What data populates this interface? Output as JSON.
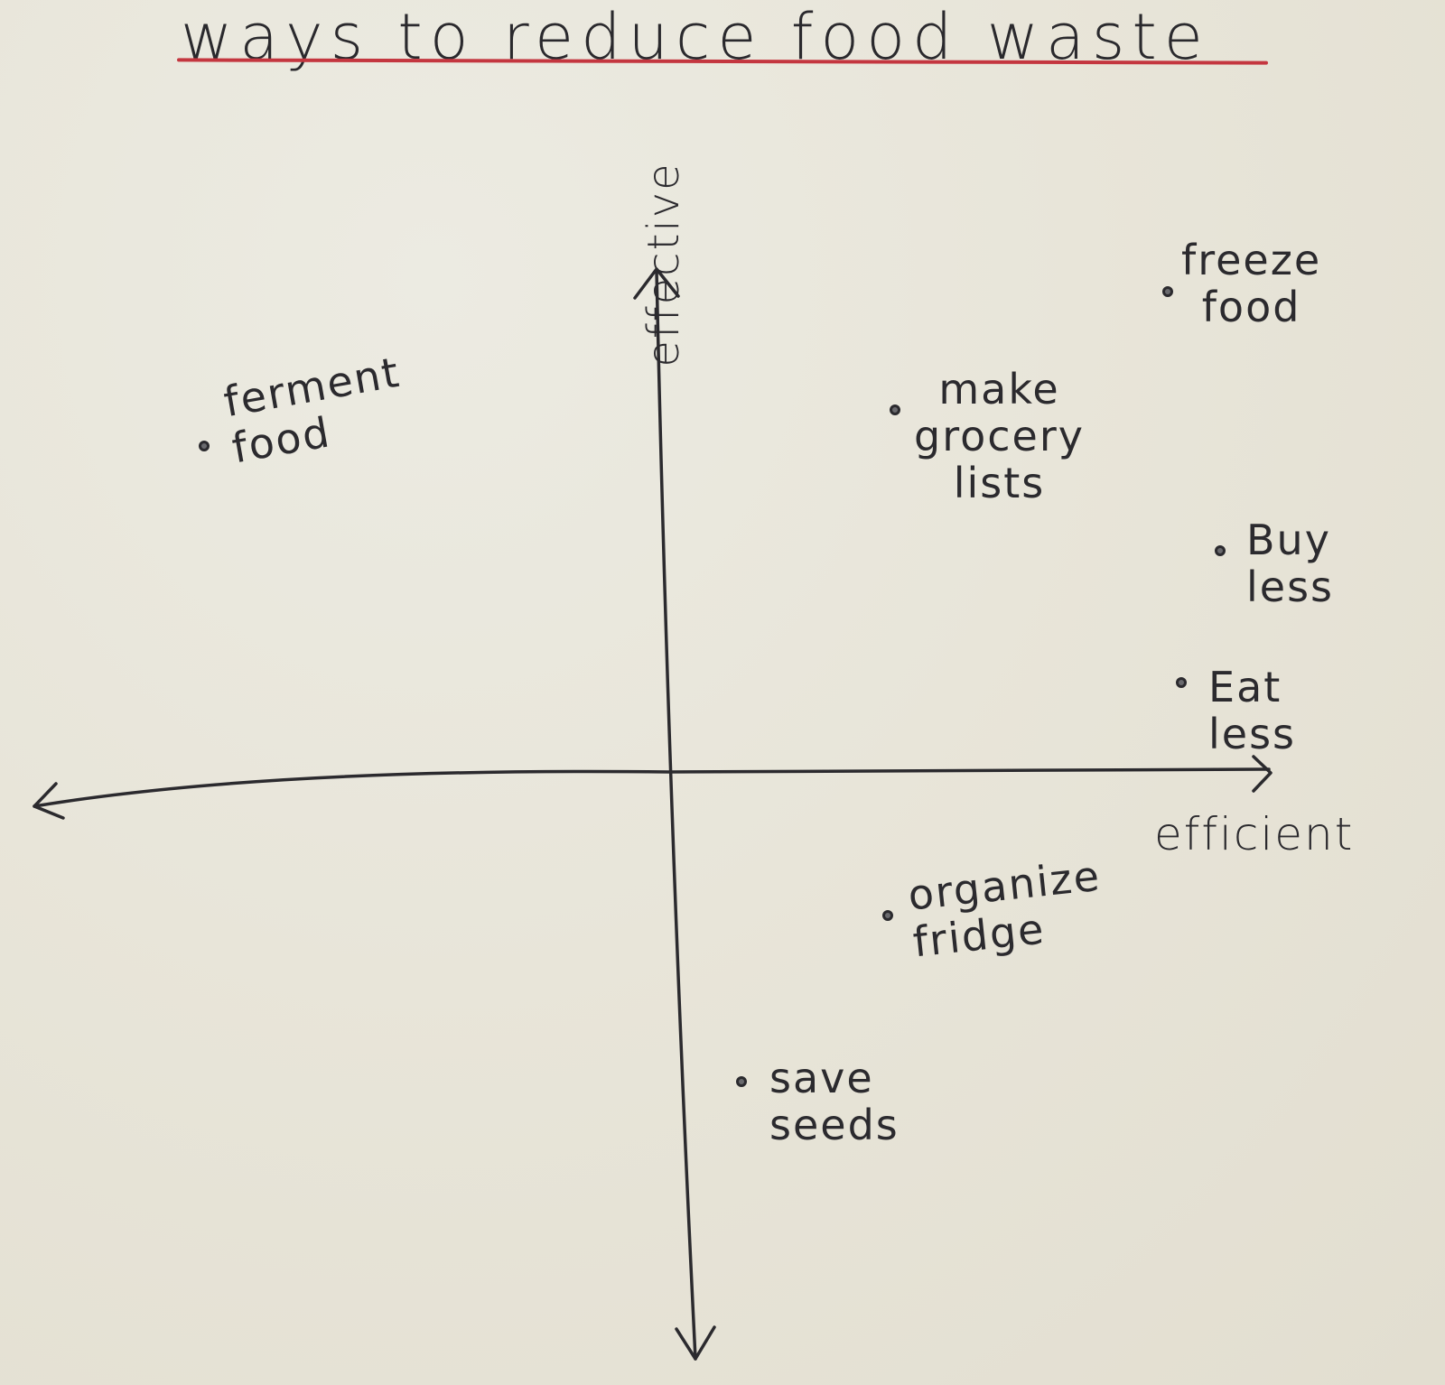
{
  "title": "ways to reduce food waste",
  "axes": {
    "y_label": "effective",
    "x_label": "efficient"
  },
  "items": [
    {
      "label": "ferment\nfood"
    },
    {
      "label": "make\ngrocery\nlists"
    },
    {
      "label": "freeze\nfood"
    },
    {
      "label": "Buy\nless"
    },
    {
      "label": "Eat\nless"
    },
    {
      "label": "organize\nfridge"
    },
    {
      "label": "save\nseeds"
    }
  ],
  "colors": {
    "paper": "#e9e5d8",
    "ink": "#2b2a2e",
    "underline": "#c4363f"
  }
}
